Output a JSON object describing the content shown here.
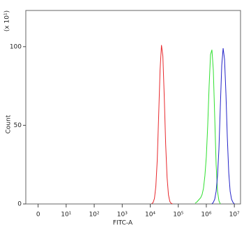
{
  "chart_data": {
    "type": "line",
    "x_label": "FITC-A",
    "y_label": "Count",
    "y_multiplier": "(x 10¹)",
    "xlim": [
      -0.44,
      7.22
    ],
    "ylim": [
      0,
      123
    ],
    "xticks": [
      {
        "value": 0,
        "label": "0"
      },
      {
        "value": 1,
        "label": "10¹"
      },
      {
        "value": 2,
        "label": "10²"
      },
      {
        "value": 3,
        "label": "10³"
      },
      {
        "value": 4,
        "label": "10⁴"
      },
      {
        "value": 5,
        "label": "10⁵"
      },
      {
        "value": 6,
        "label": "10⁶"
      },
      {
        "value": 7,
        "label": "10⁷"
      }
    ],
    "yticks": [
      0,
      50,
      100
    ],
    "series": [
      {
        "color": "#e8282c",
        "x": [
          4.05,
          4.1,
          4.15,
          4.2,
          4.25,
          4.3,
          4.35,
          4.4,
          4.45,
          4.5,
          4.55,
          4.6,
          4.65,
          4.7,
          4.75,
          4.8
        ],
        "values": [
          0.2,
          0.8,
          3.5,
          11.3,
          28,
          56,
          85,
          101,
          94,
          68,
          38,
          17,
          5.7,
          1.5,
          0.3,
          0
        ]
      },
      {
        "color": "#2fe02f",
        "x": [
          5.6,
          5.65,
          5.7,
          5.75,
          5.8,
          5.85,
          5.9,
          5.95,
          6.0,
          6.05,
          6.1,
          6.15,
          6.2,
          6.25,
          6.3,
          6.35,
          6.4,
          6.45,
          6.5
        ],
        "values": [
          0.5,
          1,
          2,
          3,
          4,
          6,
          10,
          18,
          30,
          50,
          75,
          95,
          98,
          85,
          55,
          25,
          8,
          2,
          0
        ]
      },
      {
        "color": "#2323c8",
        "x": [
          6.2,
          6.25,
          6.3,
          6.35,
          6.4,
          6.45,
          6.5,
          6.55,
          6.6,
          6.65,
          6.7,
          6.75,
          6.8,
          6.85,
          6.9,
          6.95,
          7.0
        ],
        "values": [
          0,
          1,
          3,
          8,
          18,
          35,
          62,
          88,
          99,
          92,
          70,
          42,
          20,
          8,
          3,
          1,
          0
        ]
      }
    ]
  }
}
